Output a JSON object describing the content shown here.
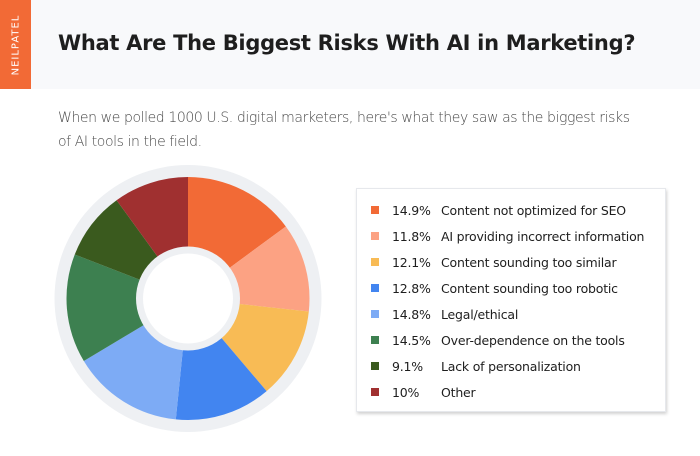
{
  "header": {
    "brand": "NEILPATEL",
    "title": "What Are The Biggest Risks With AI in Marketing?"
  },
  "intro": "When we polled 1000 U.S. digital marketers, here's what they saw as the biggest risks of AI tools in the field.",
  "colors": {
    "brand": "#f26a36",
    "header_bg": "#f8f9fb",
    "ring": "#eef0f3"
  },
  "chart_data": {
    "type": "pie",
    "title": "What Are The Biggest Risks With AI in Marketing?",
    "subtitle": "When we polled 1000 U.S. digital marketers, here's what they saw as the biggest risks of AI tools in the field.",
    "donut": true,
    "start_angle": "12 o'clock",
    "direction": "clockwise",
    "legend_position": "right",
    "categories": [
      "Content not optimized for SEO",
      "AI providing incorrect information",
      "Content sounding too similar",
      "Content sounding too robotic",
      "Legal/ethical",
      "Over-dependence on the tools",
      "Lack of personalization",
      "Other"
    ],
    "values": [
      14.9,
      11.8,
      12.1,
      12.8,
      14.8,
      14.5,
      9.1,
      10
    ],
    "labels": [
      "14.9%",
      "11.8%",
      "12.1%",
      "12.8%",
      "14.8%",
      "14.5%",
      "9.1%",
      "10%"
    ],
    "colors": [
      "#f26a36",
      "#fca283",
      "#f8bb55",
      "#4285f0",
      "#7dabf5",
      "#3d8050",
      "#3a5a1e",
      "#a03030"
    ],
    "unit": "%"
  }
}
